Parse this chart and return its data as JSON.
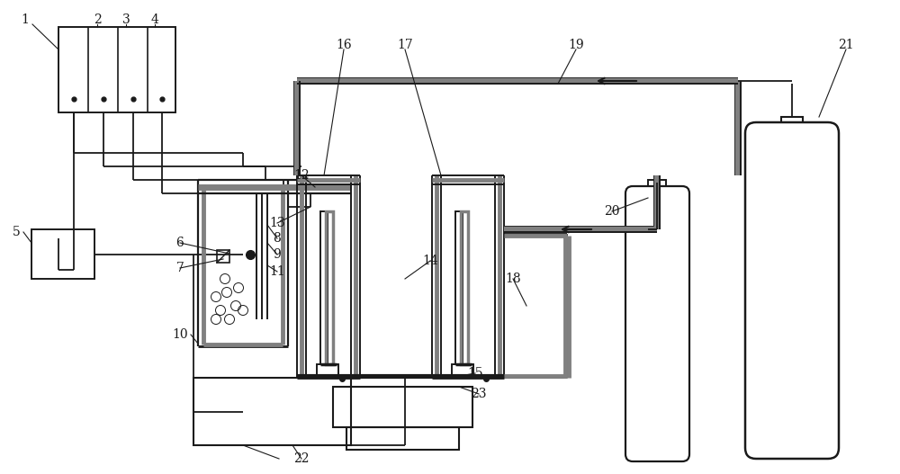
{
  "bg_color": "#ffffff",
  "lc": "#1a1a1a",
  "gc": "#808080",
  "fig_width": 10.0,
  "fig_height": 5.27,
  "lw": 1.3,
  "lw_thick": 3.0
}
